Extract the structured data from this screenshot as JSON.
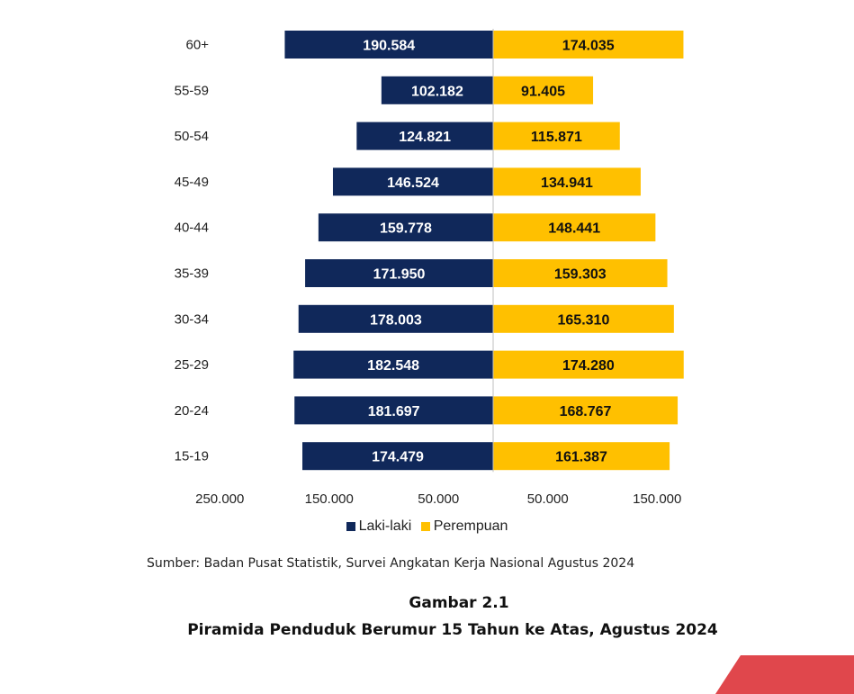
{
  "chart_data": {
    "type": "bar",
    "orientation": "horizontal",
    "layout": "population-pyramid",
    "categories": [
      "60+",
      "55-59",
      "50-54",
      "45-49",
      "40-44",
      "35-39",
      "30-34",
      "25-29",
      "20-24",
      "15-19"
    ],
    "series": [
      {
        "name": "Laki-laki",
        "color": "#10285a",
        "label_color": "#ffffff",
        "side": "left",
        "values": [
          190584,
          102182,
          124821,
          146524,
          159778,
          171950,
          178003,
          182548,
          181697,
          174479
        ],
        "labels": [
          "190.584",
          "102.182",
          "124.821",
          "146.524",
          "159.778",
          "171.950",
          "178.003",
          "182.548",
          "181.697",
          "174.479"
        ]
      },
      {
        "name": "Perempuan",
        "color": "#ffc000",
        "label_color": "#111111",
        "side": "right",
        "values": [
          174035,
          91405,
          115871,
          134941,
          148441,
          159303,
          165310,
          174280,
          168767,
          161387
        ],
        "labels": [
          "174.035",
          "91.405",
          "115.871",
          "134.941",
          "148.441",
          "159.303",
          "165.310",
          "174.280",
          "168.767",
          "161.387"
        ]
      }
    ],
    "x_ticks": [
      {
        "value": -250000,
        "label": "250.000"
      },
      {
        "value": -150000,
        "label": "150.000"
      },
      {
        "value": -50000,
        "label": "50.000"
      },
      {
        "value": 50000,
        "label": "50.000"
      },
      {
        "value": 150000,
        "label": "150.000"
      }
    ],
    "xlim": [
      -250000,
      190000
    ],
    "grid": false,
    "legend_position": "bottom-center"
  },
  "legend": {
    "male_label": "Laki-laki",
    "female_label": "Perempuan",
    "male_color": "#10285a",
    "female_color": "#ffc000"
  },
  "source_text": "Sumber: Badan Pusat Statistik, Survei Angkatan Kerja Nasional Agustus 2024",
  "figure_number": "Gambar 2.1",
  "figure_title": "Piramida Penduduk Berumur 15 Tahun ke Atas, Agustus 2024",
  "decoration": {
    "corner_stripe_color": "#e0474c"
  }
}
